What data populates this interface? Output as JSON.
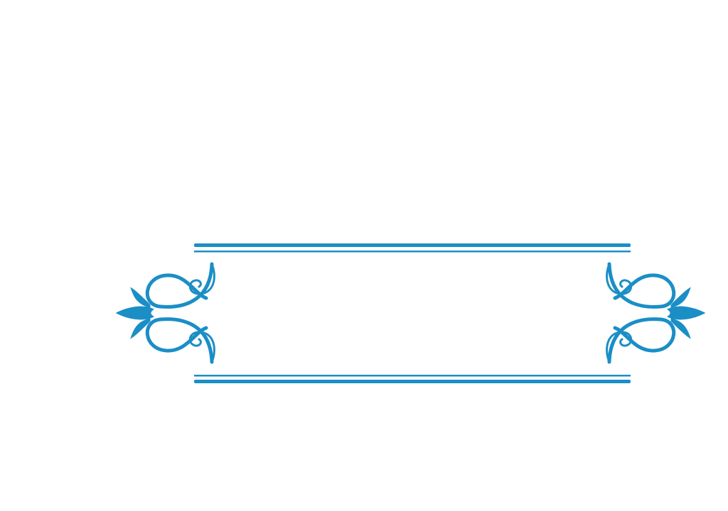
{
  "colors": {
    "background": "#ffffff",
    "ornament": "#1b8ec6",
    "ornament_dark": "#1a7fb3"
  },
  "frame": {
    "style": "decorative-flourish-banner",
    "text": ""
  }
}
